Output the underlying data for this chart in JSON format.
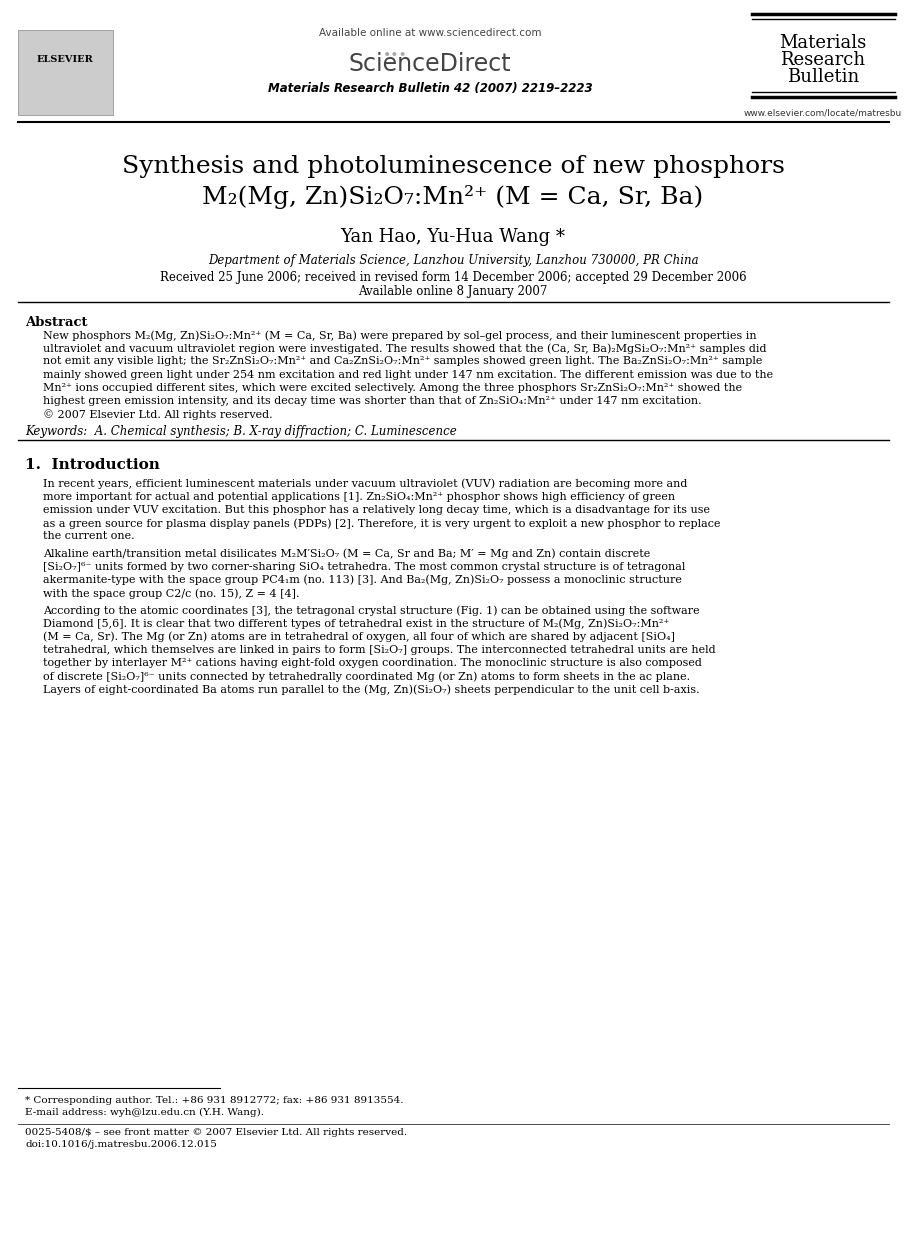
{
  "title_line1": "Synthesis and photoluminescence of new phosphors",
  "title_line2": "M₂(Mg, Zn)Si₂O₇:Mn²⁺ (M = Ca, Sr, Ba)",
  "authors": "Yan Hao, Yu-Hua Wang",
  "affiliation": "Department of Materials Science, Lanzhou University, Lanzhou 730000, PR China",
  "dates": "Received 25 June 2006; received in revised form 14 December 2006; accepted 29 December 2006",
  "available_online": "Available online 8 January 2007",
  "journal_header": "Available online at www.sciencedirect.com",
  "journal_citation": "Materials Research Bulletin 42 (2007) 2219–2223",
  "journal_name_line1": "Materials",
  "journal_name_line2": "Research",
  "journal_name_line3": "Bulletin",
  "journal_url": "www.elsevier.com/locate/matresbu",
  "abstract_title": "Abstract",
  "keywords": "Keywords:  A. Chemical synthesis; B. X-ray diffraction; C. Luminescence",
  "section1_title": "1.  Introduction",
  "footnote1": "* Corresponding author. Tel.: +86 931 8912772; fax: +86 931 8913554.",
  "footnote2": "E-mail address: wyh@lzu.edu.cn (Y.H. Wang).",
  "footnote3": "0025-5408/$ – see front matter © 2007 Elsevier Ltd. All rights reserved.",
  "footnote4": "doi:10.1016/j.matresbu.2006.12.015",
  "abstract_lines": [
    "New phosphors M₂(Mg, Zn)Si₂O₇:Mn²⁺ (M = Ca, Sr, Ba) were prepared by sol–gel process, and their luminescent properties in",
    "ultraviolet and vacuum ultraviolet region were investigated. The results showed that the (Ca, Sr, Ba)₂MgSi₂O₇:Mn²⁺ samples did",
    "not emit any visible light; the Sr₂ZnSi₂O₇:Mn²⁺ and Ca₂ZnSi₂O₇:Mn²⁺ samples showed green light. The Ba₂ZnSi₂O₇:Mn²⁺ sample",
    "mainly showed green light under 254 nm excitation and red light under 147 nm excitation. The different emission was due to the",
    "Mn²⁺ ions occupied different sites, which were excited selectively. Among the three phosphors Sr₂ZnSi₂O₇:Mn²⁺ showed the",
    "highest green emission intensity, and its decay time was shorter than that of Zn₂SiO₄:Mn²⁺ under 147 nm excitation.",
    "© 2007 Elsevier Ltd. All rights reserved."
  ],
  "intro_lines1": [
    "In recent years, efficient luminescent materials under vacuum ultraviolet (VUV) radiation are becoming more and",
    "more important for actual and potential applications [1]. Zn₂SiO₄:Mn²⁺ phosphor shows high efficiency of green",
    "emission under VUV excitation. But this phosphor has a relatively long decay time, which is a disadvantage for its use",
    "as a green source for plasma display panels (PDPs) [2]. Therefore, it is very urgent to exploit a new phosphor to replace",
    "the current one."
  ],
  "intro_lines2": [
    "Alkaline earth/transition metal disilicates M₂M′Si₂O₇ (M = Ca, Sr and Ba; M′ = Mg and Zn) contain discrete",
    "[Si₂O₇]⁶⁻ units formed by two corner-sharing SiO₄ tetrahedra. The most common crystal structure is of tetragonal",
    "akermanite-type with the space group PС4₁m (no. 113) [3]. And Ba₂(Mg, Zn)Si₂O₇ possess a monoclinic structure",
    "with the space group C2/c (no. 15), Z = 4 [4]."
  ],
  "intro_lines3": [
    "According to the atomic coordinates [3], the tetragonal crystal structure (Fig. 1) can be obtained using the software",
    "Diamond [5,6]. It is clear that two different types of tetrahedral exist in the structure of M₂(Mg, Zn)Si₂O₇:Mn²⁺",
    "(M = Ca, Sr). The Mg (or Zn) atoms are in tetrahedral of oxygen, all four of which are shared by adjacent [SiO₄]",
    "tetrahedral, which themselves are linked in pairs to form [Si₂O₇] groups. The interconnected tetrahedral units are held",
    "together by interlayer M²⁺ cations having eight-fold oxygen coordination. The monoclinic structure is also composed",
    "of discrete [Si₂O₇]⁶⁻ units connected by tetrahedrally coordinated Mg (or Zn) atoms to form sheets in the ac plane.",
    "Layers of eight-coordinated Ba atoms run parallel to the (Mg, Zn)(Si₂O₇) sheets perpendicular to the unit cell b-axis."
  ],
  "bg_color": "#ffffff",
  "text_color": "#000000"
}
